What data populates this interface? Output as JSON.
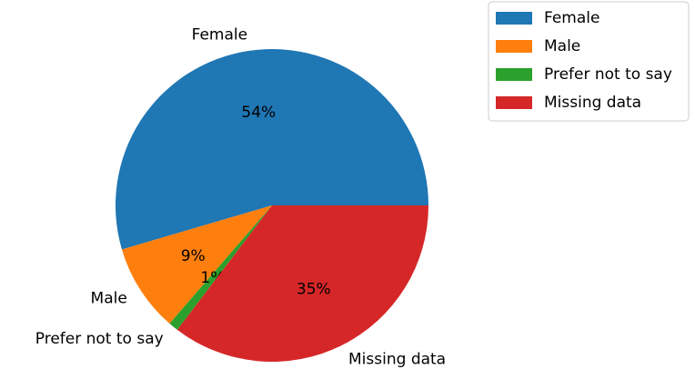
{
  "chart_data": {
    "type": "pie",
    "categories": [
      "Female",
      "Male",
      "Prefer not to say",
      "Missing data"
    ],
    "values": [
      54,
      9,
      1,
      35
    ],
    "value_labels": [
      "54%",
      "9%",
      "1%",
      "35%"
    ],
    "colors": [
      "#1f77b4",
      "#ff7f0e",
      "#2ca02c",
      "#d62728"
    ],
    "legend": "upper right"
  }
}
